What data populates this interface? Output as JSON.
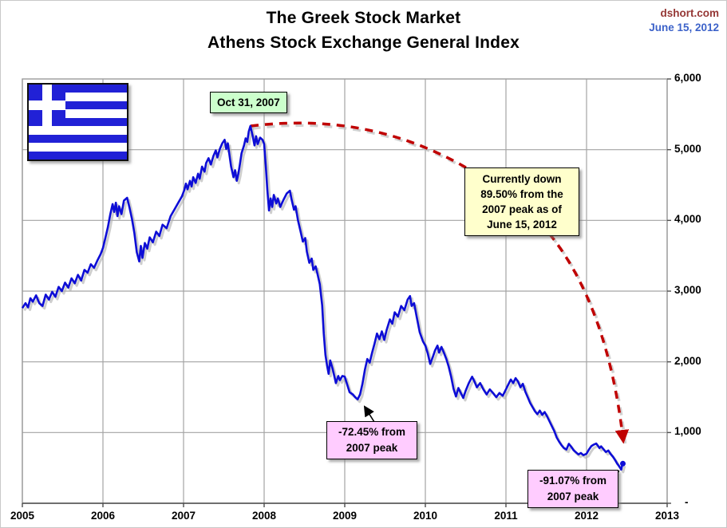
{
  "header": {
    "title_line1": "The Greek Stock Market",
    "title_line2": "Athens Stock Exchange General Index",
    "source": "dshort.com",
    "date": "June 15, 2012"
  },
  "colors": {
    "line_blue": "#0d0dd6",
    "flag_blue": "#2121d6",
    "dash_red": "#c00000",
    "grid_gray": "#a3a3a3",
    "axis_dark": "#4d4d4d",
    "source_red": "#953735",
    "date_blue": "#3c62c9",
    "box_green": "#ccffcc",
    "box_yellow": "#ffffcc",
    "box_pink": "#ffccff"
  },
  "chart_data": {
    "type": "line",
    "title": "The Greek Stock Market",
    "subtitle": "Athens Stock Exchange General Index",
    "xlabel": "",
    "ylabel": "",
    "xlim": [
      2005,
      2013
    ],
    "ylim": [
      0,
      6000
    ],
    "grid": true,
    "legend": "none",
    "x_ticks": [
      {
        "value": 2005,
        "label": "2005"
      },
      {
        "value": 2006,
        "label": "2006"
      },
      {
        "value": 2007,
        "label": "2007"
      },
      {
        "value": 2008,
        "label": "2008"
      },
      {
        "value": 2009,
        "label": "2009"
      },
      {
        "value": 2010,
        "label": "2010"
      },
      {
        "value": 2011,
        "label": "2011"
      },
      {
        "value": 2012,
        "label": "2012"
      },
      {
        "value": 2013,
        "label": "2013"
      }
    ],
    "y_ticks": [
      {
        "value": 6000,
        "label": "6,000"
      },
      {
        "value": 5000,
        "label": "5,000"
      },
      {
        "value": 4000,
        "label": "4,000"
      },
      {
        "value": 3000,
        "label": "3,000"
      },
      {
        "value": 2000,
        "label": "2,000"
      },
      {
        "value": 1000,
        "label": "1,000"
      },
      {
        "value": 0,
        "label": "-"
      }
    ],
    "annotations": {
      "peak_label": {
        "text": "Oct 31, 2007",
        "style": "green"
      },
      "current_note": {
        "text": "Currently down\n89.50% from the\n2007 peak as of\nJune 15, 2012",
        "style": "yellow"
      },
      "low_2009": {
        "text": "-72.45% from\n2007 peak",
        "style": "pink"
      },
      "low_2012": {
        "text": "-91.07% from\n2007 peak",
        "style": "pink"
      }
    },
    "series": [
      {
        "name": "Athens Stock Exchange General Index",
        "color": "#0d0dd6",
        "points": [
          [
            2005.0,
            2760
          ],
          [
            2005.04,
            2830
          ],
          [
            2005.07,
            2770
          ],
          [
            2005.1,
            2900
          ],
          [
            2005.13,
            2850
          ],
          [
            2005.17,
            2940
          ],
          [
            2005.21,
            2830
          ],
          [
            2005.25,
            2790
          ],
          [
            2005.29,
            2950
          ],
          [
            2005.33,
            2880
          ],
          [
            2005.37,
            2990
          ],
          [
            2005.41,
            2920
          ],
          [
            2005.45,
            3060
          ],
          [
            2005.49,
            3000
          ],
          [
            2005.53,
            3120
          ],
          [
            2005.57,
            3050
          ],
          [
            2005.61,
            3180
          ],
          [
            2005.65,
            3110
          ],
          [
            2005.69,
            3230
          ],
          [
            2005.73,
            3150
          ],
          [
            2005.77,
            3300
          ],
          [
            2005.81,
            3260
          ],
          [
            2005.85,
            3380
          ],
          [
            2005.89,
            3330
          ],
          [
            2005.93,
            3430
          ],
          [
            2005.97,
            3520
          ],
          [
            2006.0,
            3610
          ],
          [
            2006.03,
            3750
          ],
          [
            2006.06,
            3900
          ],
          [
            2006.09,
            4080
          ],
          [
            2006.12,
            4230
          ],
          [
            2006.14,
            4120
          ],
          [
            2006.16,
            4250
          ],
          [
            2006.18,
            4060
          ],
          [
            2006.2,
            4200
          ],
          [
            2006.23,
            4090
          ],
          [
            2006.26,
            4280
          ],
          [
            2006.3,
            4320
          ],
          [
            2006.33,
            4180
          ],
          [
            2006.36,
            4020
          ],
          [
            2006.39,
            3820
          ],
          [
            2006.42,
            3550
          ],
          [
            2006.45,
            3420
          ],
          [
            2006.47,
            3640
          ],
          [
            2006.49,
            3470
          ],
          [
            2006.52,
            3680
          ],
          [
            2006.55,
            3600
          ],
          [
            2006.58,
            3760
          ],
          [
            2006.62,
            3690
          ],
          [
            2006.66,
            3840
          ],
          [
            2006.7,
            3780
          ],
          [
            2006.74,
            3940
          ],
          [
            2006.79,
            3890
          ],
          [
            2006.84,
            4060
          ],
          [
            2006.89,
            4160
          ],
          [
            2006.94,
            4260
          ],
          [
            2006.98,
            4340
          ],
          [
            2007.01,
            4430
          ],
          [
            2007.03,
            4520
          ],
          [
            2007.05,
            4440
          ],
          [
            2007.08,
            4560
          ],
          [
            2007.1,
            4480
          ],
          [
            2007.12,
            4610
          ],
          [
            2007.15,
            4530
          ],
          [
            2007.18,
            4660
          ],
          [
            2007.2,
            4590
          ],
          [
            2007.23,
            4760
          ],
          [
            2007.26,
            4690
          ],
          [
            2007.28,
            4810
          ],
          [
            2007.31,
            4880
          ],
          [
            2007.34,
            4790
          ],
          [
            2007.37,
            4910
          ],
          [
            2007.4,
            4990
          ],
          [
            2007.42,
            4890
          ],
          [
            2007.45,
            5010
          ],
          [
            2007.48,
            5090
          ],
          [
            2007.51,
            5140
          ],
          [
            2007.53,
            5010
          ],
          [
            2007.55,
            5090
          ],
          [
            2007.57,
            4920
          ],
          [
            2007.59,
            4760
          ],
          [
            2007.62,
            4610
          ],
          [
            2007.64,
            4710
          ],
          [
            2007.66,
            4560
          ],
          [
            2007.68,
            4660
          ],
          [
            2007.7,
            4800
          ],
          [
            2007.72,
            4950
          ],
          [
            2007.75,
            5060
          ],
          [
            2007.77,
            5160
          ],
          [
            2007.79,
            5110
          ],
          [
            2007.81,
            5260
          ],
          [
            2007.83,
            5335
          ],
          [
            2007.86,
            5180
          ],
          [
            2007.88,
            5060
          ],
          [
            2007.9,
            5190
          ],
          [
            2007.92,
            5080
          ],
          [
            2007.95,
            5170
          ],
          [
            2007.98,
            5140
          ],
          [
            2008.0,
            5080
          ],
          [
            2008.02,
            4780
          ],
          [
            2008.04,
            4430
          ],
          [
            2008.06,
            4140
          ],
          [
            2008.08,
            4310
          ],
          [
            2008.1,
            4190
          ],
          [
            2008.12,
            4360
          ],
          [
            2008.15,
            4240
          ],
          [
            2008.17,
            4310
          ],
          [
            2008.2,
            4190
          ],
          [
            2008.24,
            4290
          ],
          [
            2008.28,
            4380
          ],
          [
            2008.32,
            4420
          ],
          [
            2008.34,
            4300
          ],
          [
            2008.37,
            4150
          ],
          [
            2008.39,
            4200
          ],
          [
            2008.42,
            4000
          ],
          [
            2008.45,
            3850
          ],
          [
            2008.48,
            3700
          ],
          [
            2008.51,
            3750
          ],
          [
            2008.53,
            3560
          ],
          [
            2008.56,
            3400
          ],
          [
            2008.59,
            3460
          ],
          [
            2008.61,
            3300
          ],
          [
            2008.64,
            3350
          ],
          [
            2008.66,
            3250
          ],
          [
            2008.69,
            3100
          ],
          [
            2008.72,
            2800
          ],
          [
            2008.74,
            2400
          ],
          [
            2008.76,
            2100
          ],
          [
            2008.78,
            1950
          ],
          [
            2008.8,
            1830
          ],
          [
            2008.82,
            2020
          ],
          [
            2008.85,
            1900
          ],
          [
            2008.87,
            1800
          ],
          [
            2008.89,
            1700
          ],
          [
            2008.92,
            1800
          ],
          [
            2008.94,
            1740
          ],
          [
            2008.97,
            1800
          ],
          [
            2009.0,
            1790
          ],
          [
            2009.03,
            1680
          ],
          [
            2009.06,
            1570
          ],
          [
            2009.1,
            1540
          ],
          [
            2009.13,
            1500
          ],
          [
            2009.16,
            1470
          ],
          [
            2009.19,
            1540
          ],
          [
            2009.22,
            1690
          ],
          [
            2009.25,
            1890
          ],
          [
            2009.28,
            2040
          ],
          [
            2009.31,
            1990
          ],
          [
            2009.34,
            2130
          ],
          [
            2009.37,
            2260
          ],
          [
            2009.4,
            2400
          ],
          [
            2009.43,
            2320
          ],
          [
            2009.46,
            2430
          ],
          [
            2009.49,
            2310
          ],
          [
            2009.52,
            2450
          ],
          [
            2009.56,
            2600
          ],
          [
            2009.59,
            2540
          ],
          [
            2009.62,
            2700
          ],
          [
            2009.66,
            2640
          ],
          [
            2009.7,
            2790
          ],
          [
            2009.74,
            2730
          ],
          [
            2009.78,
            2880
          ],
          [
            2009.81,
            2930
          ],
          [
            2009.83,
            2790
          ],
          [
            2009.86,
            2830
          ],
          [
            2009.89,
            2650
          ],
          [
            2009.93,
            2420
          ],
          [
            2009.97,
            2290
          ],
          [
            2010.0,
            2230
          ],
          [
            2010.03,
            2120
          ],
          [
            2010.06,
            1970
          ],
          [
            2010.09,
            2060
          ],
          [
            2010.12,
            2160
          ],
          [
            2010.15,
            2230
          ],
          [
            2010.17,
            2130
          ],
          [
            2010.2,
            2210
          ],
          [
            2010.23,
            2130
          ],
          [
            2010.26,
            2040
          ],
          [
            2010.29,
            1930
          ],
          [
            2010.32,
            1790
          ],
          [
            2010.35,
            1620
          ],
          [
            2010.38,
            1510
          ],
          [
            2010.41,
            1630
          ],
          [
            2010.44,
            1560
          ],
          [
            2010.47,
            1490
          ],
          [
            2010.5,
            1590
          ],
          [
            2010.54,
            1700
          ],
          [
            2010.58,
            1790
          ],
          [
            2010.61,
            1720
          ],
          [
            2010.64,
            1640
          ],
          [
            2010.68,
            1700
          ],
          [
            2010.72,
            1610
          ],
          [
            2010.76,
            1540
          ],
          [
            2010.8,
            1610
          ],
          [
            2010.84,
            1560
          ],
          [
            2010.88,
            1500
          ],
          [
            2010.92,
            1560
          ],
          [
            2010.96,
            1520
          ],
          [
            2011.0,
            1610
          ],
          [
            2011.03,
            1680
          ],
          [
            2011.06,
            1750
          ],
          [
            2011.09,
            1700
          ],
          [
            2011.12,
            1770
          ],
          [
            2011.15,
            1720
          ],
          [
            2011.18,
            1640
          ],
          [
            2011.21,
            1690
          ],
          [
            2011.24,
            1580
          ],
          [
            2011.27,
            1500
          ],
          [
            2011.3,
            1420
          ],
          [
            2011.33,
            1360
          ],
          [
            2011.36,
            1300
          ],
          [
            2011.39,
            1260
          ],
          [
            2011.42,
            1310
          ],
          [
            2011.45,
            1250
          ],
          [
            2011.48,
            1290
          ],
          [
            2011.51,
            1230
          ],
          [
            2011.54,
            1160
          ],
          [
            2011.57,
            1090
          ],
          [
            2011.6,
            1020
          ],
          [
            2011.63,
            930
          ],
          [
            2011.66,
            870
          ],
          [
            2011.69,
            820
          ],
          [
            2011.72,
            780
          ],
          [
            2011.75,
            760
          ],
          [
            2011.78,
            840
          ],
          [
            2011.81,
            800
          ],
          [
            2011.84,
            750
          ],
          [
            2011.87,
            720
          ],
          [
            2011.9,
            690
          ],
          [
            2011.93,
            710
          ],
          [
            2011.96,
            680
          ],
          [
            2012.0,
            700
          ],
          [
            2012.03,
            760
          ],
          [
            2012.06,
            810
          ],
          [
            2012.09,
            830
          ],
          [
            2012.12,
            845
          ],
          [
            2012.14,
            815
          ],
          [
            2012.16,
            780
          ],
          [
            2012.18,
            805
          ],
          [
            2012.21,
            765
          ],
          [
            2012.24,
            725
          ],
          [
            2012.27,
            745
          ],
          [
            2012.3,
            695
          ],
          [
            2012.33,
            655
          ],
          [
            2012.36,
            600
          ],
          [
            2012.38,
            560
          ],
          [
            2012.4,
            530
          ],
          [
            2012.42,
            495
          ],
          [
            2012.43,
            476
          ],
          [
            2012.44,
            525
          ],
          [
            2012.45,
            560
          ]
        ]
      }
    ]
  }
}
